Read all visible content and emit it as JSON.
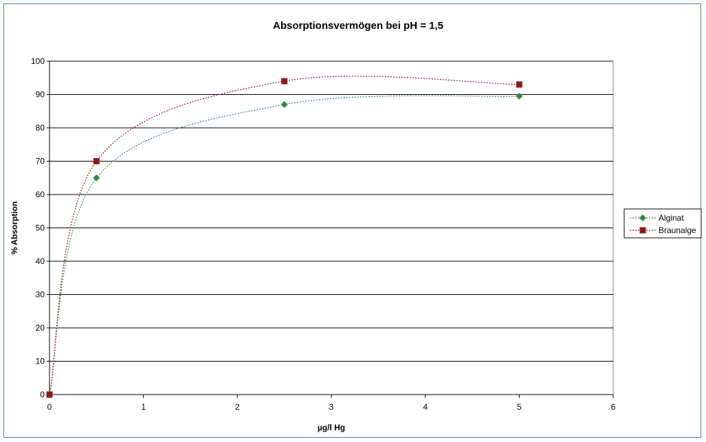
{
  "chart_data": {
    "type": "scatter",
    "title": "Absorptionsvermögen bei pH = 1,5",
    "xlabel": "µg/l Hg",
    "ylabel": "% Absorption",
    "xlim": [
      0,
      6
    ],
    "ylim": [
      0,
      100
    ],
    "xticks": [
      "0",
      "1",
      "2",
      "3",
      "4",
      "5",
      "6"
    ],
    "yticks": [
      "0",
      "10",
      "20",
      "30",
      "40",
      "50",
      "60",
      "70",
      "80",
      "90",
      "100"
    ],
    "grid": "horizontal",
    "legend_position": "right",
    "series": [
      {
        "name": "Alginat",
        "color": "#2e8b3e",
        "marker": "diamond",
        "line": "dotted-smooth",
        "x": [
          0,
          0.5,
          2.5,
          5
        ],
        "y": [
          0,
          65,
          87,
          89.5
        ]
      },
      {
        "name": "Braunalge",
        "color": "#8b1a1a",
        "marker": "square",
        "line": "dotted-smooth",
        "x": [
          0,
          0.5,
          2.5,
          5
        ],
        "y": [
          0,
          70,
          94,
          93
        ]
      }
    ]
  }
}
